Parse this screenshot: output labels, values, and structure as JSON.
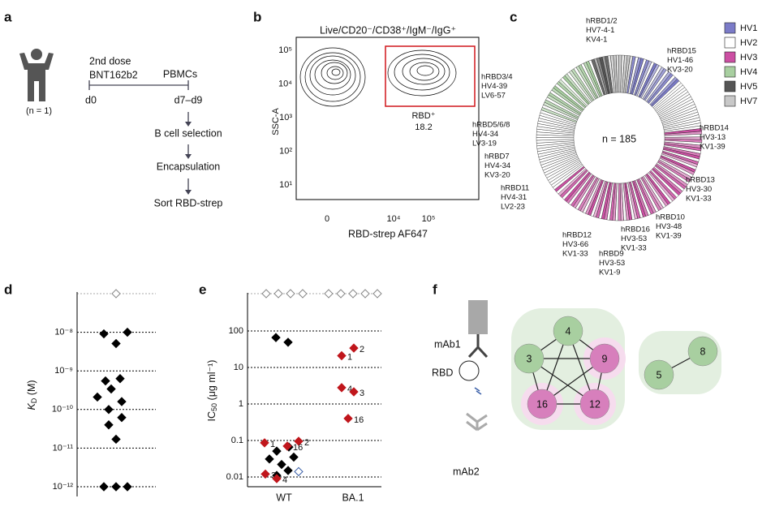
{
  "panels": {
    "a": {
      "label": "a",
      "dose": "2nd dose",
      "vaccine": "BNT162b2",
      "subject": "(n = 1)",
      "day0": "d0",
      "sample": "PBMCs",
      "day_range": "d7–d9",
      "steps": [
        "B cell selection",
        "Encapsulation",
        "Sort RBD-strep"
      ]
    },
    "b": {
      "label": "b",
      "title": "Live/CD20⁻/CD38⁺/IgM⁻/IgG⁺",
      "ylabel": "SSC-A",
      "xlabel": "RBD-strep AF647",
      "yticks": [
        "10⁵",
        "10⁴",
        "10³",
        "10²",
        "10¹"
      ],
      "xticks": [
        "0",
        "10⁴",
        "10⁵"
      ],
      "gate": "RBD⁺",
      "gate_value": "18.2"
    },
    "c": {
      "label": "c",
      "center": "n = 185",
      "legend": [
        {
          "name": "HV1",
          "color": "#7b7bc8"
        },
        {
          "name": "HV2",
          "color": "#ffffff"
        },
        {
          "name": "HV3",
          "color": "#cc4fa3"
        },
        {
          "name": "HV4",
          "color": "#a8cfa0"
        },
        {
          "name": "HV5",
          "color": "#555555"
        },
        {
          "name": "HV7",
          "color": "#c8c8c8"
        }
      ],
      "annotations": [
        [
          "hRBD1/2",
          "HV7-4-1",
          "KV4-1"
        ],
        [
          "hRBD15",
          "HV1-46",
          "KV3-20"
        ],
        [
          "hRBD14",
          "HV3-13",
          "KV1-39"
        ],
        [
          "hRBD13",
          "HV3-30",
          "KV1-33"
        ],
        [
          "hRBD10",
          "HV3-48",
          "KV1-39"
        ],
        [
          "hRBD16",
          "HV3-53",
          "KV1-33"
        ],
        [
          "hRBD9",
          "HV3-53",
          "KV1-9"
        ],
        [
          "hRBD12",
          "HV3-66",
          "KV1-33"
        ],
        [
          "hRBD11",
          "HV4-31",
          "LV2-23"
        ],
        [
          "hRBD7",
          "HV4-34",
          "KV3-20"
        ],
        [
          "hRBD5/6/8",
          "HV4-34",
          "LV3-19"
        ],
        [
          "hRBD3/4",
          "HV4-39",
          "LV6-57"
        ]
      ]
    },
    "f": {
      "label": "f",
      "mab1": "mAb1",
      "rbd": "RBD",
      "mab2": "mAb2",
      "nodes": [
        {
          "label": "4",
          "color": "#a8cfa0"
        },
        {
          "label": "3",
          "color": "#a8cfa0"
        },
        {
          "label": "9",
          "color": "#d77fbc"
        },
        {
          "label": "16",
          "color": "#d77fbc"
        },
        {
          "label": "12",
          "color": "#d77fbc"
        },
        {
          "label": "5",
          "color": "#a8cfa0"
        },
        {
          "label": "8",
          "color": "#a8cfa0"
        }
      ]
    }
  },
  "chart_data": [
    {
      "type": "scatter",
      "label": "d",
      "ylabel": "K",
      "ylabel_sub": "D",
      "ylabel_unit": " (M)",
      "log_y": true,
      "ylim": [
        5.6e-13,
        1e-07
      ],
      "yticks": [
        {
          "value": 1e-08,
          "label": "10⁻⁸"
        },
        {
          "value": 1e-09,
          "label": "10⁻⁹"
        },
        {
          "value": 1e-10,
          "label": "10⁻¹⁰"
        },
        {
          "value": 1e-11,
          "label": "10⁻¹¹"
        },
        {
          "value": 1e-12,
          "label": "10⁻¹²"
        }
      ],
      "series": [
        {
          "color": "#000000",
          "values": [
            9.1e-09,
            1e-08,
            5.1e-09,
            2.1e-10,
            5.5e-10,
            6.3e-10,
            3.4e-10,
            1.6e-10,
            1e-10,
            6.2e-11,
            4e-11,
            1.7e-11,
            1e-12,
            1e-12,
            1e-12
          ]
        }
      ]
    },
    {
      "type": "scatter",
      "label": "e",
      "ylabel": "IC",
      "ylabel_sub": "50",
      "ylabel_unit": " (μg ml⁻¹)",
      "log_y": true,
      "ylim": [
        0.0054,
        1000
      ],
      "yticks": [
        {
          "value": 100,
          "label": "100"
        },
        {
          "value": 10,
          "label": "10"
        },
        {
          "value": 1,
          "label": "1"
        },
        {
          "value": 0.1,
          "label": "0.1"
        },
        {
          "value": 0.01,
          "label": "0.01"
        }
      ],
      "categories": [
        "WT",
        "BA.1"
      ],
      "series": [
        {
          "category": "WT",
          "color": "#000000",
          "values": [
            66,
            49,
            0.051,
            0.066,
            0.031,
            0.022,
            0.035,
            0.011,
            0.015
          ]
        },
        {
          "category": "WT",
          "color": "#c0161c",
          "values": [
            0.086,
            0.095,
            0.07,
            0.012,
            0.009
          ],
          "point_labels": [
            "1",
            "2",
            "16",
            "3",
            "4"
          ]
        },
        {
          "category": "WT",
          "color": "#3a5fa8",
          "hollow": true,
          "values": [
            0.014
          ]
        },
        {
          "category": "BA.1",
          "color": "#c0161c",
          "values": [
            34,
            21,
            2.8,
            2.15,
            0.4
          ],
          "point_labels": [
            "2",
            "1",
            "4",
            "3",
            "16"
          ]
        }
      ]
    }
  ]
}
